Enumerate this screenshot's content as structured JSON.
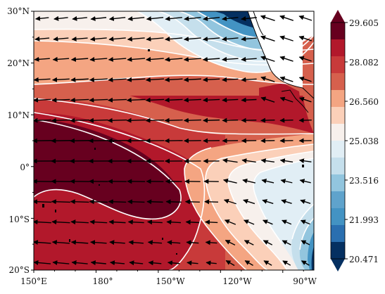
{
  "map": {
    "lat_ticks": [
      "30°N",
      "20°N",
      "10°N",
      "0°",
      "10°S",
      "20°S"
    ],
    "lon_ticks": [
      "150°E",
      "180°",
      "150°W",
      "120°W",
      "90°W"
    ],
    "extent": {
      "lon": [
        150,
        285
      ],
      "lat": [
        -20,
        30
      ]
    }
  },
  "colorbar": {
    "labels": [
      "29.605",
      "28.082",
      "26.560",
      "25.038",
      "23.516",
      "21.993",
      "20.471"
    ],
    "colors": [
      "#67001f",
      "#b2182b",
      "#c83a3a",
      "#d6604d",
      "#f4a582",
      "#fbd0b9",
      "#f7f0ec",
      "#e1eef5",
      "#c5dfec",
      "#92c5de",
      "#5fa3cc",
      "#4393c3",
      "#2a6fb0",
      "#053061"
    ],
    "range": [
      20.471,
      29.605
    ]
  }
}
